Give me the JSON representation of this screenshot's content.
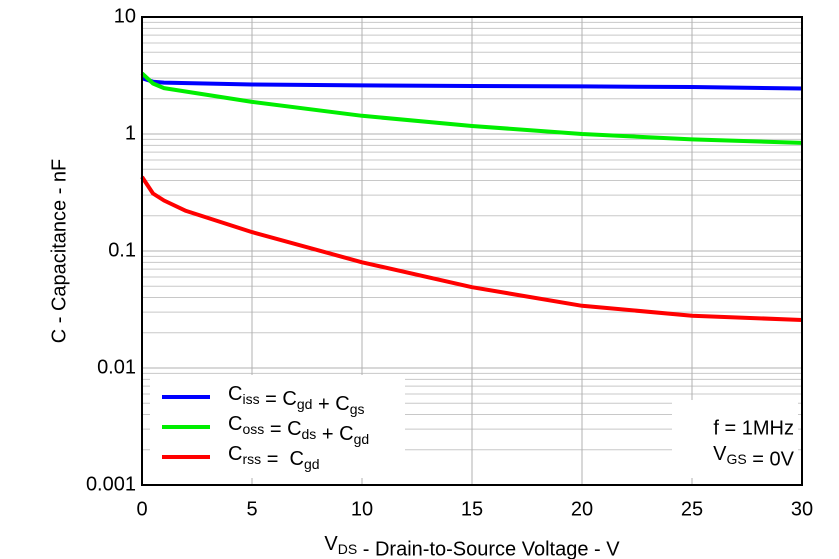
{
  "chart_data": {
    "type": "line",
    "x_label": "VDS - Drain-to-Source Voltage - V",
    "y_label": "C - Capacitance - nF",
    "annotations": [
      "f = 1MHz",
      "VGS = 0V"
    ],
    "y_scale": "log",
    "grid": true,
    "legend": "lower left",
    "xlim": [
      0,
      30
    ],
    "xticks": [
      0,
      5,
      10,
      15,
      20,
      25,
      30
    ],
    "ylim": [
      0.001,
      10
    ],
    "yticks": [
      0.001,
      0.01,
      0.1,
      1,
      10
    ],
    "series": [
      {
        "name": "Ciss = Cgd + Cgs",
        "color": "#0000ff",
        "x": [
          0,
          0.5,
          1,
          5,
          10,
          15,
          20,
          25,
          30
        ],
        "values": [
          3.0,
          2.8,
          2.75,
          2.65,
          2.6,
          2.57,
          2.55,
          2.52,
          2.45
        ]
      },
      {
        "name": "Coss = Cds + Cgd",
        "color": "#00ee00",
        "x": [
          0,
          0.5,
          1,
          5,
          10,
          15,
          20,
          25,
          30
        ],
        "values": [
          3.3,
          2.7,
          2.47,
          1.88,
          1.43,
          1.17,
          1.0,
          0.9,
          0.84
        ]
      },
      {
        "name": "Crss =  Cgd",
        "color": "#ff0000",
        "x": [
          0,
          0.5,
          1,
          2,
          5,
          10,
          15,
          20,
          25,
          30
        ],
        "values": [
          0.43,
          0.31,
          0.27,
          0.22,
          0.145,
          0.08,
          0.049,
          0.034,
          0.028,
          0.0257
        ]
      }
    ]
  }
}
